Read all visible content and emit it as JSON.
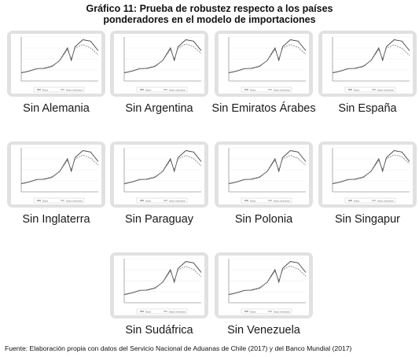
{
  "title_line1": "Gráfico 11: Prueba de robustez respecto a los países",
  "title_line2": "ponderadores en el modelo de importaciones",
  "source": "Fuente: Elaboración propia con datos del Servicio Nacional de Aduanas de Chile (2017) y del Banco Mundial (2017)",
  "colors": {
    "card": "#e1e1e1",
    "plot_bg": "#ffffff",
    "observed": "#444444",
    "fitted": "#7a7a7a"
  },
  "chart_data": [
    {
      "type": "line",
      "title": "Sin Alemania",
      "x": [
        1996,
        1998,
        2000,
        2002,
        2004,
        2006,
        2008,
        2009,
        2010,
        2012,
        2014,
        2016
      ],
      "series": [
        {
          "name": "Datos",
          "values": [
            60,
            72,
            90,
            92,
            106,
            150,
            240,
            150,
            250,
            300,
            290,
            220
          ]
        },
        {
          "name": "Datos estimados",
          "values": [
            58,
            70,
            88,
            95,
            110,
            148,
            230,
            160,
            240,
            265,
            240,
            190
          ]
        }
      ]
    },
    {
      "type": "line",
      "title": "Sin Argentina",
      "x": [
        1996,
        1998,
        2000,
        2002,
        2004,
        2006,
        2008,
        2009,
        2010,
        2012,
        2014,
        2016
      ],
      "series": [
        {
          "name": "Datos",
          "values": [
            60,
            72,
            90,
            92,
            106,
            150,
            240,
            150,
            250,
            300,
            290,
            220
          ]
        },
        {
          "name": "Datos estimados",
          "values": [
            58,
            70,
            88,
            95,
            110,
            148,
            230,
            160,
            240,
            270,
            250,
            200
          ]
        }
      ]
    },
    {
      "type": "line",
      "title": "Sin Emiratos Árabes",
      "x": [
        1996,
        1998,
        2000,
        2002,
        2004,
        2006,
        2008,
        2009,
        2010,
        2012,
        2014,
        2016
      ],
      "series": [
        {
          "name": "Datos",
          "values": [
            60,
            72,
            90,
            92,
            106,
            150,
            240,
            150,
            250,
            300,
            290,
            220
          ]
        },
        {
          "name": "Datos estimados",
          "values": [
            58,
            70,
            88,
            95,
            110,
            148,
            230,
            160,
            240,
            265,
            245,
            195
          ]
        }
      ]
    },
    {
      "type": "line",
      "title": "Sin España",
      "x": [
        1996,
        1998,
        2000,
        2002,
        2004,
        2006,
        2008,
        2009,
        2010,
        2012,
        2014,
        2016
      ],
      "series": [
        {
          "name": "Datos",
          "values": [
            60,
            72,
            90,
            92,
            106,
            150,
            240,
            150,
            250,
            300,
            290,
            220
          ]
        },
        {
          "name": "Datos estimados",
          "values": [
            58,
            70,
            88,
            95,
            110,
            148,
            230,
            160,
            240,
            262,
            238,
            185
          ]
        }
      ]
    },
    {
      "type": "line",
      "title": "Sin Inglaterra",
      "x": [
        1996,
        1998,
        2000,
        2002,
        2004,
        2006,
        2008,
        2009,
        2010,
        2012,
        2014,
        2016
      ],
      "series": [
        {
          "name": "Datos",
          "values": [
            60,
            72,
            90,
            92,
            106,
            150,
            240,
            150,
            250,
            300,
            290,
            220
          ]
        },
        {
          "name": "Datos estimados",
          "values": [
            58,
            70,
            88,
            95,
            110,
            148,
            230,
            160,
            240,
            268,
            245,
            195
          ]
        }
      ]
    },
    {
      "type": "line",
      "title": "Sin Paraguay",
      "x": [
        1996,
        1998,
        2000,
        2002,
        2004,
        2006,
        2008,
        2009,
        2010,
        2012,
        2014,
        2016
      ],
      "series": [
        {
          "name": "Datos",
          "values": [
            60,
            72,
            90,
            92,
            106,
            150,
            240,
            150,
            250,
            300,
            290,
            220
          ]
        },
        {
          "name": "Datos estimados",
          "values": [
            58,
            70,
            88,
            95,
            110,
            148,
            230,
            160,
            240,
            265,
            242,
            190
          ]
        }
      ]
    },
    {
      "type": "line",
      "title": "Sin Polonia",
      "x": [
        1996,
        1998,
        2000,
        2002,
        2004,
        2006,
        2008,
        2009,
        2010,
        2012,
        2014,
        2016
      ],
      "series": [
        {
          "name": "Datos",
          "values": [
            60,
            72,
            90,
            92,
            106,
            150,
            240,
            150,
            250,
            300,
            290,
            220
          ]
        },
        {
          "name": "Datos estimados",
          "values": [
            58,
            70,
            88,
            95,
            110,
            148,
            230,
            160,
            240,
            265,
            243,
            192
          ]
        }
      ]
    },
    {
      "type": "line",
      "title": "Sin Singapur",
      "x": [
        1996,
        1998,
        2000,
        2002,
        2004,
        2006,
        2008,
        2009,
        2010,
        2012,
        2014,
        2016
      ],
      "series": [
        {
          "name": "Datos",
          "values": [
            60,
            72,
            90,
            92,
            106,
            150,
            240,
            150,
            250,
            300,
            290,
            220
          ]
        },
        {
          "name": "Datos estimados",
          "values": [
            58,
            70,
            88,
            95,
            110,
            148,
            230,
            160,
            240,
            270,
            255,
            205
          ]
        }
      ]
    },
    {
      "type": "line",
      "title": "Sin Sudáfrica",
      "x": [
        1996,
        1998,
        2000,
        2002,
        2004,
        2006,
        2008,
        2009,
        2010,
        2012,
        2014,
        2016
      ],
      "series": [
        {
          "name": "Datos",
          "values": [
            60,
            72,
            90,
            92,
            106,
            150,
            240,
            150,
            250,
            300,
            290,
            220
          ]
        },
        {
          "name": "Datos estimados",
          "values": [
            58,
            70,
            88,
            95,
            110,
            148,
            230,
            160,
            240,
            265,
            240,
            190
          ]
        }
      ]
    },
    {
      "type": "line",
      "title": "Sin Venezuela",
      "x": [
        1996,
        1998,
        2000,
        2002,
        2004,
        2006,
        2008,
        2009,
        2010,
        2012,
        2014,
        2016
      ],
      "series": [
        {
          "name": "Datos",
          "values": [
            60,
            72,
            90,
            92,
            106,
            150,
            240,
            150,
            250,
            300,
            290,
            220
          ]
        },
        {
          "name": "Datos estimados",
          "values": [
            58,
            70,
            88,
            95,
            110,
            148,
            230,
            160,
            240,
            268,
            245,
            195
          ]
        }
      ]
    }
  ]
}
